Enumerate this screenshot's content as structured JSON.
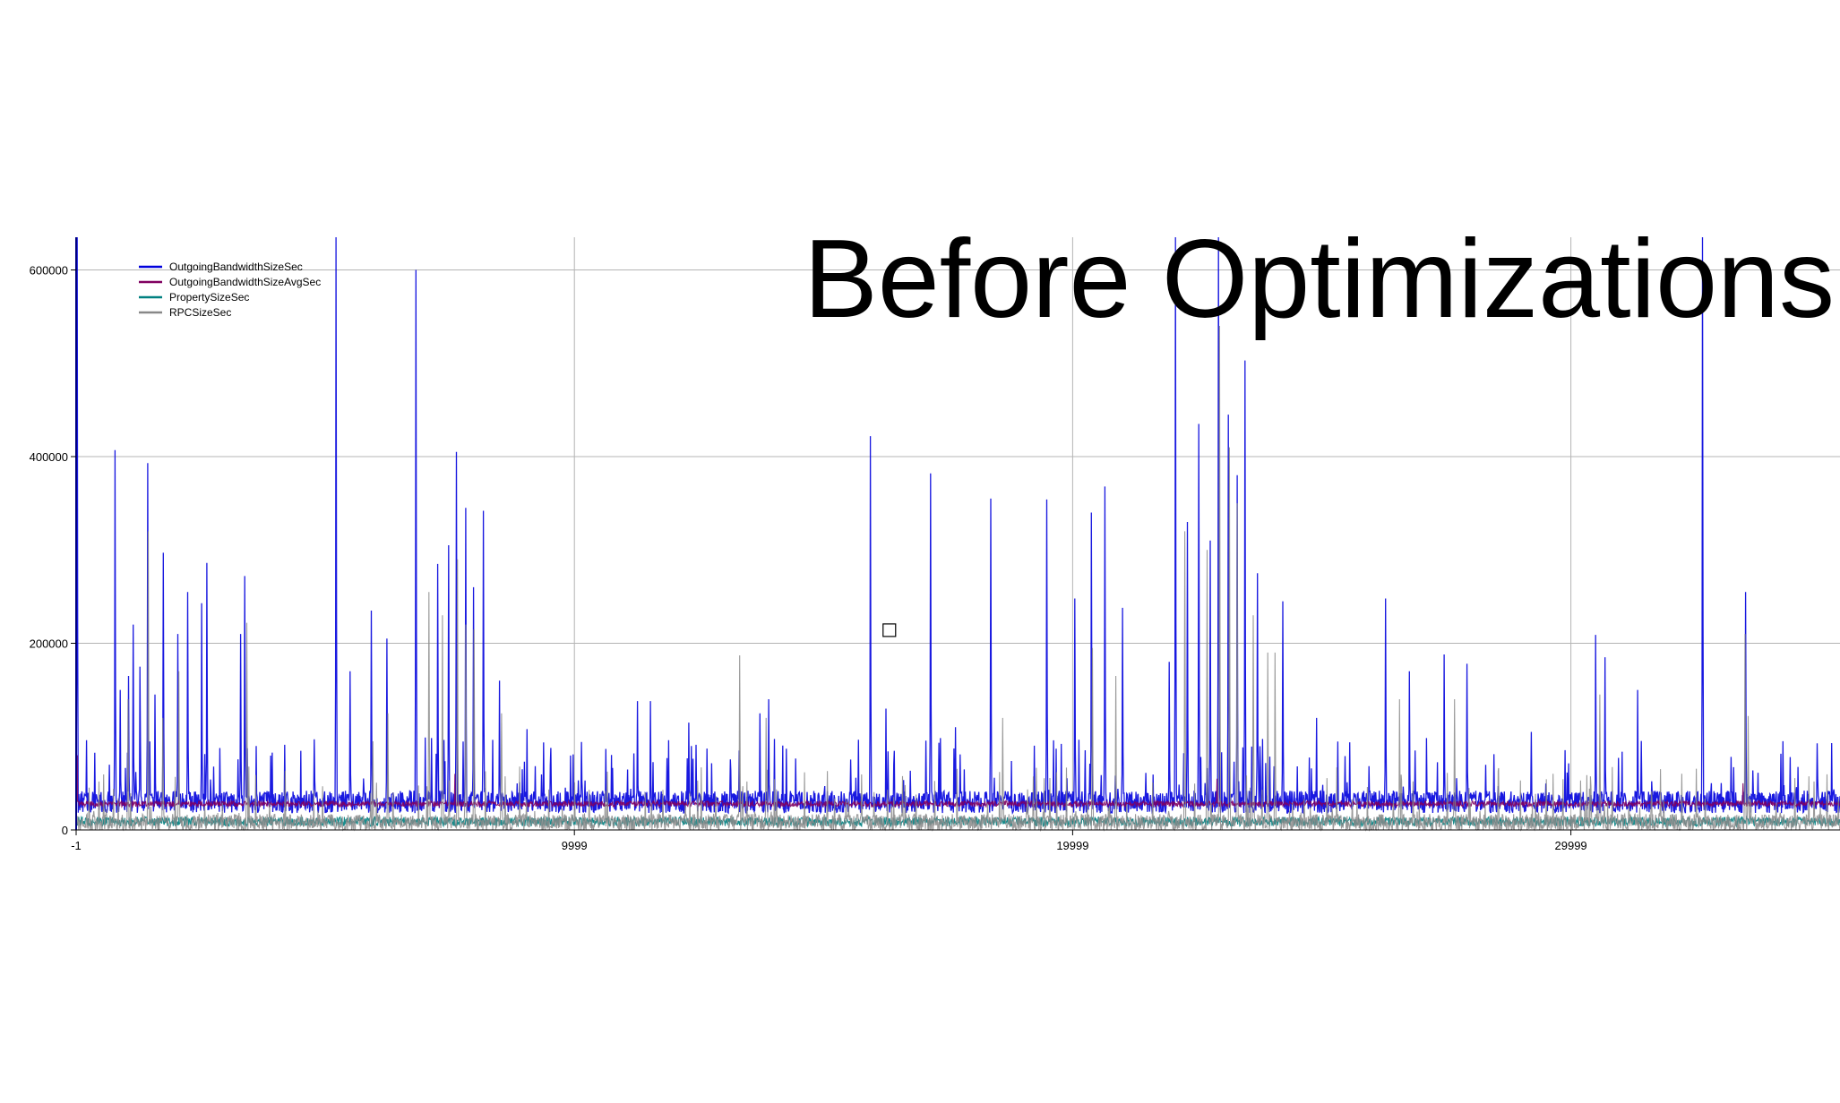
{
  "slide": {
    "title": "Before Optimizations"
  },
  "chart_data": {
    "type": "line",
    "title": "",
    "xlabel": "",
    "ylabel": "",
    "xlim": [
      -1,
      35400
    ],
    "ylim": [
      0,
      635000
    ],
    "x_ticks": [
      -1,
      9999,
      19999,
      29999
    ],
    "x_tick_labels": [
      "-1",
      "9999",
      "19999",
      "29999"
    ],
    "y_ticks": [
      0,
      200000,
      400000,
      600000
    ],
    "y_tick_labels": [
      "0",
      "200000",
      "400000",
      "600000"
    ],
    "grid": true,
    "legend_position": "top-left",
    "marker_point": {
      "x": 16320,
      "y": 214000
    },
    "series": [
      {
        "name": "OutgoingBandwidthSizeSec",
        "color": "#0000dd",
        "baseline": 30000,
        "noise": 12000,
        "spikes": [
          [
            20,
            635000
          ],
          [
            780,
            407000
          ],
          [
            880,
            150000
          ],
          [
            1050,
            165000
          ],
          [
            1140,
            220000
          ],
          [
            1280,
            175000
          ],
          [
            1440,
            393000
          ],
          [
            1580,
            145000
          ],
          [
            1750,
            297000
          ],
          [
            2040,
            210000
          ],
          [
            2240,
            255000
          ],
          [
            2620,
            286000
          ],
          [
            2520,
            243000
          ],
          [
            3380,
            272000
          ],
          [
            3300,
            210000
          ],
          [
            5220,
            635000
          ],
          [
            5500,
            170000
          ],
          [
            5920,
            235000
          ],
          [
            6240,
            205000
          ],
          [
            6820,
            600000
          ],
          [
            7260,
            285000
          ],
          [
            7470,
            305000
          ],
          [
            7630,
            405000
          ],
          [
            7820,
            345000
          ],
          [
            7970,
            260000
          ],
          [
            8170,
            342000
          ],
          [
            8500,
            160000
          ],
          [
            9050,
            108000
          ],
          [
            11260,
            138000
          ],
          [
            11530,
            138000
          ],
          [
            12300,
            115000
          ],
          [
            13720,
            125000
          ],
          [
            13900,
            140000
          ],
          [
            15940,
            422000
          ],
          [
            16250,
            130000
          ],
          [
            17150,
            382000
          ],
          [
            17650,
            110000
          ],
          [
            18360,
            355000
          ],
          [
            19480,
            354000
          ],
          [
            20040,
            248000
          ],
          [
            20380,
            340000
          ],
          [
            20650,
            368000
          ],
          [
            21000,
            238000
          ],
          [
            21940,
            180000
          ],
          [
            22060,
            635000
          ],
          [
            22300,
            330000
          ],
          [
            22530,
            435000
          ],
          [
            22760,
            310000
          ],
          [
            22930,
            635000
          ],
          [
            23120,
            445000
          ],
          [
            23300,
            380000
          ],
          [
            23460,
            503000
          ],
          [
            23710,
            275000
          ],
          [
            24220,
            245000
          ],
          [
            24890,
            120000
          ],
          [
            26280,
            248000
          ],
          [
            26760,
            170000
          ],
          [
            27460,
            188000
          ],
          [
            27910,
            178000
          ],
          [
            29200,
            105000
          ],
          [
            30500,
            209000
          ],
          [
            30680,
            185000
          ],
          [
            31340,
            150000
          ],
          [
            32640,
            635000
          ],
          [
            33500,
            255000
          ],
          [
            34950,
            55000
          ]
        ]
      },
      {
        "name": "OutgoingBandwidthSizeAvgSec",
        "color": "#800060",
        "baseline": 28000,
        "noise": 3000,
        "spikes": [
          [
            20,
            80000
          ],
          [
            7600,
            60000
          ],
          [
            22900,
            55000
          ],
          [
            33450,
            50000
          ]
        ]
      },
      {
        "name": "PropertySizeSec",
        "color": "#008080",
        "baseline": 9000,
        "noise": 5000,
        "spikes": []
      },
      {
        "name": "RPCSizeSec",
        "color": "#888888",
        "baseline": 8000,
        "noise": 9000,
        "spikes": [
          [
            1450,
            320000
          ],
          [
            1040,
            140000
          ],
          [
            1740,
            120000
          ],
          [
            2060,
            170000
          ],
          [
            3420,
            222000
          ],
          [
            5950,
            95000
          ],
          [
            6260,
            125000
          ],
          [
            7080,
            255000
          ],
          [
            7350,
            230000
          ],
          [
            7650,
            290000
          ],
          [
            7820,
            220000
          ],
          [
            7990,
            215000
          ],
          [
            8540,
            125000
          ],
          [
            13320,
            187000
          ],
          [
            13850,
            120000
          ],
          [
            18600,
            120000
          ],
          [
            20400,
            195000
          ],
          [
            20860,
            165000
          ],
          [
            22250,
            320000
          ],
          [
            22700,
            300000
          ],
          [
            22950,
            540000
          ],
          [
            23140,
            410000
          ],
          [
            23300,
            350000
          ],
          [
            23620,
            230000
          ],
          [
            23920,
            190000
          ],
          [
            24060,
            190000
          ],
          [
            26560,
            140000
          ],
          [
            27660,
            140000
          ],
          [
            30580,
            145000
          ],
          [
            33490,
            210000
          ],
          [
            33560,
            122000
          ]
        ]
      }
    ]
  }
}
